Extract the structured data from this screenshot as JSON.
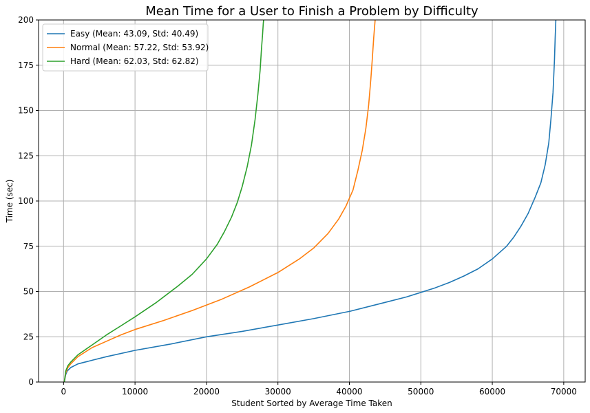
{
  "chart_data": {
    "type": "line",
    "title": "Mean Time for a User to Finish a Problem by Difficulty",
    "xlabel": "Student Sorted by Average Time Taken",
    "ylabel": "Time (sec)",
    "xlim": [
      -3500,
      73000
    ],
    "ylim": [
      0,
      200
    ],
    "xticks": [
      0,
      10000,
      20000,
      30000,
      40000,
      50000,
      60000,
      70000
    ],
    "yticks": [
      0,
      25,
      50,
      75,
      100,
      125,
      150,
      175,
      200
    ],
    "grid": true,
    "legend_position": "top-left",
    "series": [
      {
        "name": "Easy (Mean: 43.09, Std: 40.49)",
        "color": "#1f77b4",
        "x": [
          100,
          300,
          500,
          1000,
          2000,
          4000,
          6000,
          10000,
          15000,
          20000,
          25000,
          30000,
          35000,
          40000,
          45000,
          48000,
          50000,
          52000,
          54000,
          56000,
          58000,
          60000,
          62000,
          63000,
          64000,
          65000,
          66000,
          66800,
          67400,
          67900,
          68200,
          68500,
          68700,
          68800,
          68900
        ],
        "y": [
          0,
          4,
          6,
          8,
          10,
          12,
          14,
          17.5,
          21,
          25,
          28,
          31.5,
          35,
          39,
          44,
          47,
          49.5,
          52,
          55,
          58.5,
          62.5,
          68,
          75,
          80,
          86,
          93,
          102,
          110,
          120,
          132,
          145,
          160,
          178,
          190,
          200
        ]
      },
      {
        "name": "Normal (Mean: 57.22, Std: 53.92)",
        "color": "#ff7f0e",
        "x": [
          100,
          300,
          600,
          1000,
          2000,
          4000,
          6000,
          8000,
          10000,
          14000,
          18000,
          22000,
          26000,
          30000,
          33000,
          35000,
          37000,
          38500,
          39500,
          40500,
          41200,
          41800,
          42300,
          42700,
          43000,
          43200,
          43400,
          43600
        ],
        "y": [
          0,
          5,
          8,
          10,
          14,
          19,
          22.5,
          26,
          29,
          34,
          39.5,
          45.5,
          52.5,
          60.5,
          68,
          74,
          82,
          90,
          97,
          106,
          117,
          128,
          140,
          153,
          167,
          178,
          190,
          200
        ]
      },
      {
        "name": "Hard (Mean: 62.03, Std: 62.82)",
        "color": "#2ca02c",
        "x": [
          100,
          300,
          600,
          1000,
          2000,
          4000,
          6000,
          8000,
          10000,
          13000,
          16000,
          18000,
          20000,
          21500,
          22500,
          23500,
          24300,
          25000,
          25700,
          26300,
          26800,
          27200,
          27500,
          27700,
          27850,
          27950,
          28000
        ],
        "y": [
          0,
          6,
          9,
          11,
          15,
          20.5,
          26,
          31,
          36,
          44,
          53,
          59.5,
          68,
          76,
          83,
          91,
          99,
          108,
          119,
          131,
          145,
          159,
          172,
          184,
          192,
          198,
          200
        ]
      }
    ]
  }
}
